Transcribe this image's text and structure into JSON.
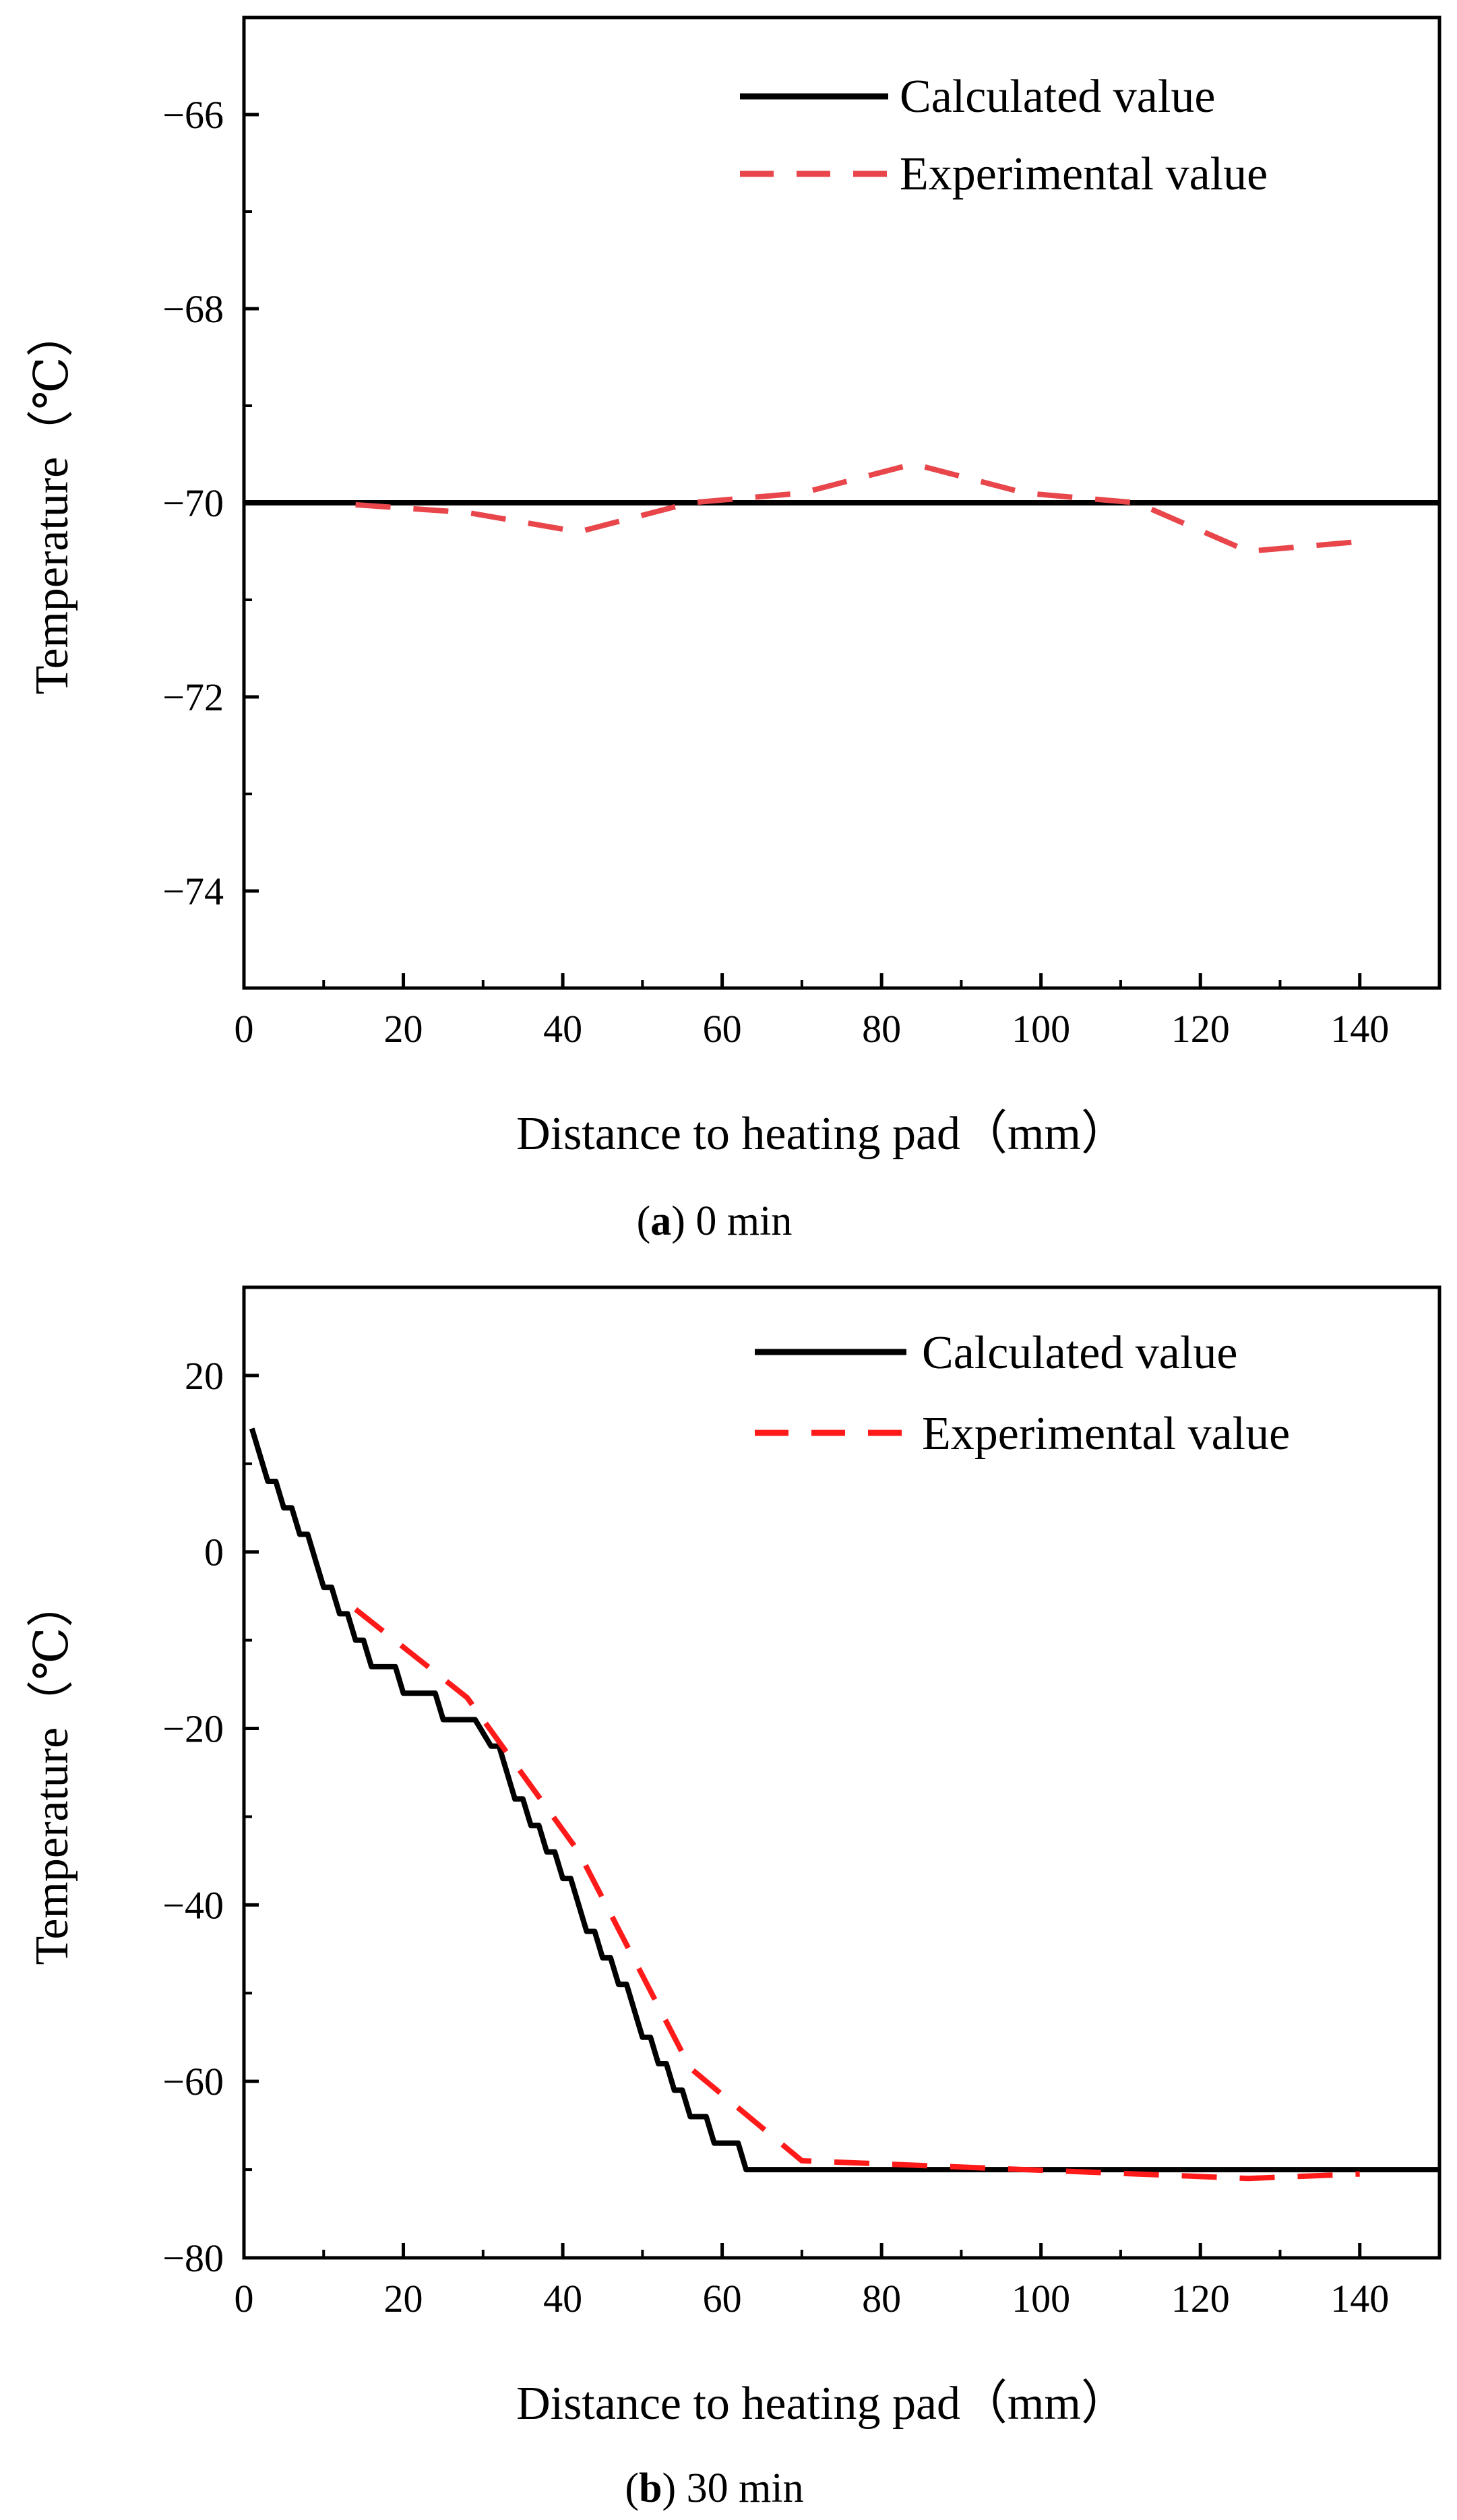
{
  "chart_data": [
    {
      "type": "line",
      "panel": "a",
      "caption": {
        "open": "(",
        "letter": "a",
        "text": ") 0 min"
      },
      "xlabel": "Distance to heating pad（mm）",
      "ylabel": "Temperature（℃）",
      "xlim": [
        0,
        150
      ],
      "ylim": [
        -75,
        -65
      ],
      "xticks": [
        0,
        20,
        40,
        60,
        80,
        100,
        120,
        140
      ],
      "xtick_labels": [
        "0",
        "20",
        "40",
        "60",
        "80",
        "100",
        "120",
        "140"
      ],
      "yticks": [
        -66,
        -68,
        -70,
        -72,
        -74
      ],
      "ytick_labels": [
        "−66",
        "−68",
        "−70",
        "−72",
        "−74"
      ],
      "legend_position": "top-right",
      "grid": false,
      "series": [
        {
          "name": "Calculated value",
          "style": "solid",
          "color": "#000000",
          "x": [
            0,
            150
          ],
          "y": [
            -70,
            -70
          ]
        },
        {
          "name": "Experimental value",
          "style": "dashed",
          "color": "#e8464b",
          "x": [
            14,
            28,
            42,
            56,
            70,
            84,
            98,
            112,
            126,
            140
          ],
          "y": [
            -70.02,
            -70.1,
            -70.3,
            -70.0,
            -69.9,
            -69.6,
            -69.9,
            -70.0,
            -70.5,
            -70.4
          ]
        }
      ]
    },
    {
      "type": "line",
      "panel": "b",
      "caption": {
        "open": "(",
        "letter": "b",
        "text": ") 30 min"
      },
      "xlabel": "Distance to heating pad（mm）",
      "ylabel": "Temperature（℃）",
      "xlim": [
        0,
        150
      ],
      "ylim": [
        -80,
        30
      ],
      "xticks": [
        0,
        20,
        40,
        60,
        80,
        100,
        120,
        140
      ],
      "xtick_labels": [
        "0",
        "20",
        "40",
        "60",
        "80",
        "100",
        "120",
        "140"
      ],
      "yticks": [
        20,
        0,
        -20,
        -40,
        -60,
        -80
      ],
      "ytick_labels": [
        "20",
        "0",
        "−20",
        "−40",
        "−60",
        "−80"
      ],
      "legend_position": "top-right",
      "grid": false,
      "series": [
        {
          "name": "Calculated value",
          "style": "solid",
          "color": "#000000",
          "x": [
            1,
            3,
            4,
            5,
            6,
            7,
            8,
            9,
            10,
            11,
            12,
            13,
            14,
            15,
            16,
            17,
            19,
            20,
            24,
            25,
            28,
            29,
            31,
            32,
            33,
            34,
            35,
            36,
            37,
            38,
            39,
            40,
            41,
            42,
            43,
            44,
            45,
            46,
            47,
            48,
            49,
            50,
            51,
            52,
            53,
            54,
            55,
            56,
            57,
            58,
            59,
            60,
            61,
            62,
            63,
            150
          ],
          "y": [
            14,
            8,
            8,
            5,
            5,
            2,
            2,
            -1,
            -4,
            -4,
            -7,
            -7,
            -10,
            -10,
            -13,
            -13,
            -13,
            -16,
            -16,
            -19,
            -19,
            -19,
            -22,
            -22,
            -25,
            -28,
            -28,
            -31,
            -31,
            -34,
            -34,
            -37,
            -37,
            -40,
            -43,
            -43,
            -46,
            -46,
            -49,
            -49,
            -52,
            -55,
            -55,
            -58,
            -58,
            -61,
            -61,
            -64,
            -64,
            -64,
            -67,
            -67,
            -67,
            -67,
            -70,
            -70
          ]
        },
        {
          "name": "Experimental value",
          "style": "dashed",
          "color": "#ff1a1a",
          "x": [
            14,
            28,
            42,
            56,
            70,
            84,
            98,
            112,
            126,
            140
          ],
          "y": [
            -6.5,
            -16.5,
            -34,
            -58.5,
            -69,
            -69.5,
            -70,
            -70.5,
            -71,
            -70.5
          ]
        }
      ]
    }
  ]
}
